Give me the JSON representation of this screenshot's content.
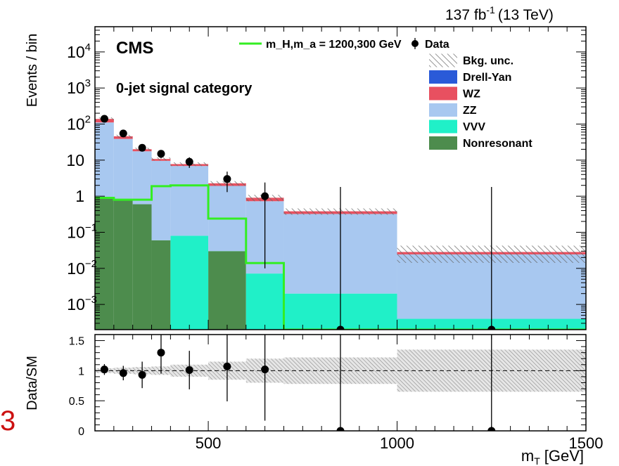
{
  "header": {
    "lumi_label": "137 fb",
    "lumi_exp": "-1",
    "energy_label": "(13 TeV)"
  },
  "chart_data": [
    {
      "type": "bar",
      "panel": "main",
      "title": "",
      "experiment_label": "CMS",
      "category_label": "0-jet signal category",
      "ylabel": "Events / bin",
      "yscale": "log",
      "ylim": [
        0.0002,
        50000
      ],
      "xlim": [
        200,
        1500
      ],
      "bin_edges": [
        200,
        250,
        300,
        350,
        400,
        500,
        600,
        700,
        1000,
        1500
      ],
      "ytick_labels": [
        {
          "value": 10000,
          "label": "10",
          "exp": "4"
        },
        {
          "value": 1000,
          "label": "10",
          "exp": "3"
        },
        {
          "value": 100,
          "label": "10",
          "exp": "2"
        },
        {
          "value": 10,
          "label": "10",
          "exp": ""
        },
        {
          "value": 1,
          "label": "1",
          "exp": ""
        },
        {
          "value": 0.1,
          "label": "10",
          "exp": "−1"
        },
        {
          "value": 0.01,
          "label": "10",
          "exp": "−2"
        },
        {
          "value": 0.001,
          "label": "10",
          "exp": "−3"
        }
      ],
      "stack_order": [
        "Nonresonant",
        "VVV",
        "ZZ",
        "WZ",
        "Drell-Yan"
      ],
      "series": [
        {
          "name": "Nonresonant",
          "color": "#4d8c4d",
          "values": [
            0.9,
            0.8,
            0.6,
            0.06,
            0.0002,
            0.03,
            0.0002,
            0.0002,
            0.0002
          ]
        },
        {
          "name": "VVV",
          "color": "#20f0c8",
          "values": [
            0.0002,
            0.0002,
            0.0002,
            0.0002,
            0.08,
            0.0002,
            0.007,
            0.0018,
            0.0002
          ]
        },
        {
          "name": "ZZ",
          "color": "#a8c8f0",
          "values": [
            110,
            38,
            17,
            9.5,
            6.8,
            1.9,
            0.72,
            0.32,
            0.024
          ]
        },
        {
          "name": "WZ",
          "color": "#e85060",
          "values": [
            28,
            7,
            2.5,
            1.2,
            0.9,
            0.35,
            0.18,
            0.06,
            0.004
          ]
        },
        {
          "name": "Drell-Yan",
          "color": "#2a5ad8",
          "values": [
            0,
            0,
            0,
            0,
            0,
            0,
            0,
            0,
            0
          ]
        }
      ],
      "bkg_unc_fraction": [
        0.1,
        0.1,
        0.1,
        0.1,
        0.12,
        0.15,
        0.2,
        0.2,
        0.5
      ],
      "signal": {
        "name_prefix": "m",
        "name_text": "m_H,m_a = 1200,300 GeV",
        "color": "#33ee22",
        "values": [
          0.9,
          0.8,
          0.8,
          1.9,
          2.0,
          0.24,
          0.014,
          0.0002,
          0.0002
        ]
      },
      "data_points": {
        "name": "Data",
        "x": [
          225,
          275,
          325,
          375,
          450,
          550,
          650,
          850,
          1250
        ],
        "y": [
          140,
          55,
          22,
          15,
          9,
          3,
          1,
          0,
          0
        ],
        "err_up": [
          12,
          8,
          5,
          4,
          3,
          1.8,
          1.4,
          1.8,
          1.8
        ],
        "err_down": [
          12,
          7,
          4.5,
          3.8,
          2.9,
          1.7,
          0.99,
          0,
          0
        ]
      },
      "legend": [
        {
          "label": "Data",
          "kind": "marker"
        },
        {
          "label": "Bkg. unc.",
          "kind": "hatch"
        },
        {
          "label": "Drell-Yan",
          "kind": "fill",
          "color": "#2a5ad8"
        },
        {
          "label": "WZ",
          "kind": "fill",
          "color": "#e85060"
        },
        {
          "label": "ZZ",
          "kind": "fill",
          "color": "#a8c8f0"
        },
        {
          "label": "VVV",
          "kind": "fill",
          "color": "#20f0c8"
        },
        {
          "label": "Nonresonant",
          "kind": "fill",
          "color": "#4d8c4d"
        }
      ],
      "legend_placement": "top-right"
    },
    {
      "type": "scatter",
      "panel": "ratio",
      "ylabel": "Data/SM",
      "xlabel": "m",
      "xlabel_sub": "T",
      "xlabel_unit": "[GeV]",
      "xlim": [
        200,
        1500
      ],
      "ylim": [
        0,
        1.6
      ],
      "xtick_labels": [
        {
          "value": 500,
          "label": "500"
        },
        {
          "value": 1000,
          "label": "1000"
        },
        {
          "value": 1500,
          "label": "1500"
        }
      ],
      "ytick_labels": [
        {
          "value": 0,
          "label": "0"
        },
        {
          "value": 0.5,
          "label": "0.5"
        },
        {
          "value": 1,
          "label": "1"
        },
        {
          "value": 1.5,
          "label": "1.5"
        }
      ],
      "unc_band_fraction": [
        0.04,
        0.05,
        0.06,
        0.07,
        0.1,
        0.15,
        0.2,
        0.22,
        0.35
      ],
      "points": {
        "x": [
          225,
          275,
          325,
          375,
          450,
          550,
          650,
          850,
          1250
        ],
        "y": [
          1.02,
          0.96,
          0.93,
          1.3,
          1.01,
          1.07,
          1.02,
          0,
          0
        ],
        "err_up": [
          0.09,
          0.12,
          0.22,
          0.35,
          0.32,
          0.58,
          0.9,
          1.6,
          1.6
        ],
        "err_down": [
          0.09,
          0.12,
          0.22,
          0.35,
          0.32,
          0.58,
          0.85,
          0,
          0
        ]
      }
    }
  ],
  "edge_label": "3"
}
